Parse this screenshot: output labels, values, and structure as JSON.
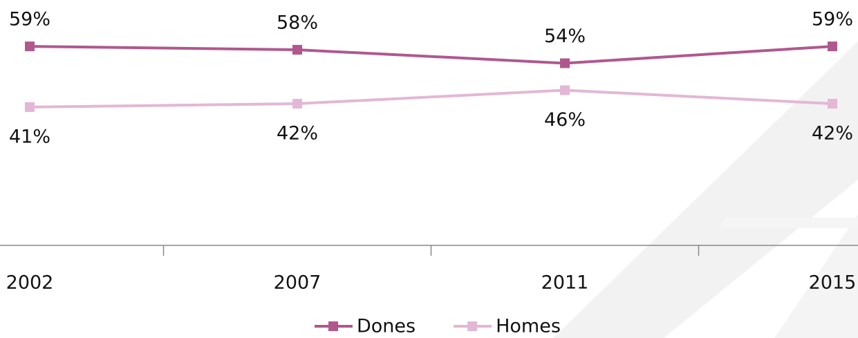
{
  "chart_data": {
    "type": "line",
    "categories": [
      "2002",
      "2007",
      "2011",
      "2015"
    ],
    "series": [
      {
        "name": "Dones",
        "color": "#b0588e",
        "values": [
          59,
          58,
          54,
          59
        ],
        "value_labels": [
          "59%",
          "58%",
          "54%",
          "59%"
        ]
      },
      {
        "name": "Homes",
        "color": "#e3b7d6",
        "values": [
          41,
          42,
          46,
          42
        ],
        "value_labels": [
          "41%",
          "42%",
          "46%",
          "42%"
        ]
      }
    ],
    "legend": "bottom"
  }
}
